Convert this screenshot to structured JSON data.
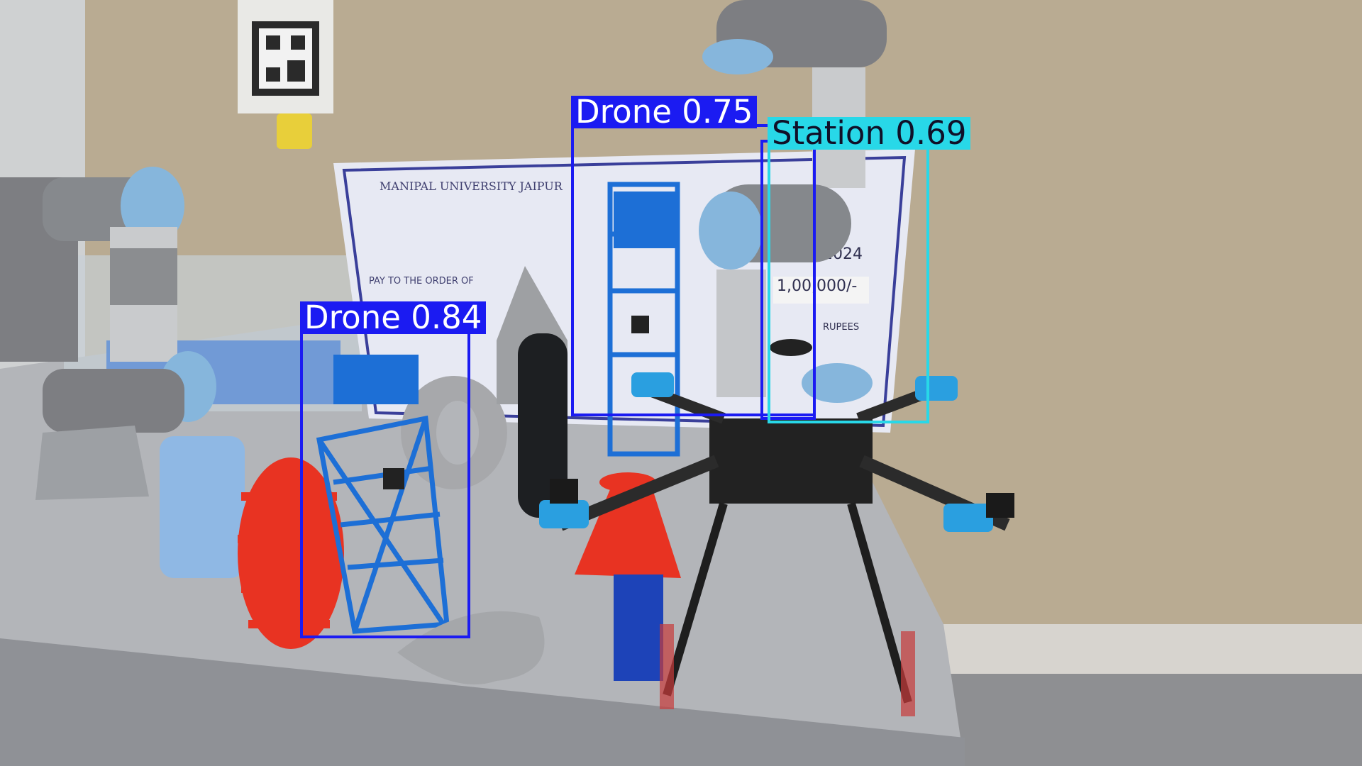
{
  "scene": {
    "description_colors": {
      "wall": "#b9ab92",
      "table": "#b3b5b9",
      "floor": "#8e8f92",
      "robot_arm_gray": "#7d7e82",
      "robot_arm_blue": "#86b6dc",
      "drone_frame": "#222222",
      "drone_accent_blue": "#2a9fe0",
      "tower_blue": "#1d6fd6",
      "red_parts": "#e83322"
    },
    "poster": {
      "university": "MANIPAL UNIVERSITY JAIPUR",
      "pay_line": "PAY TO THE ORDER OF",
      "amount": "1,00,000/-",
      "year": "2024",
      "rupees": "RUPEES"
    }
  },
  "detections": [
    {
      "label": "Drone 0.84",
      "class": "Drone",
      "confidence": 0.84,
      "color": "#1b1bf2"
    },
    {
      "label": "Drone 0.75",
      "class": "Drone",
      "confidence": 0.75,
      "color": "#1b1bf2"
    },
    {
      "label": "Station 0.69",
      "class": "Station",
      "confidence": 0.69,
      "color": "#28d8e8"
    }
  ]
}
